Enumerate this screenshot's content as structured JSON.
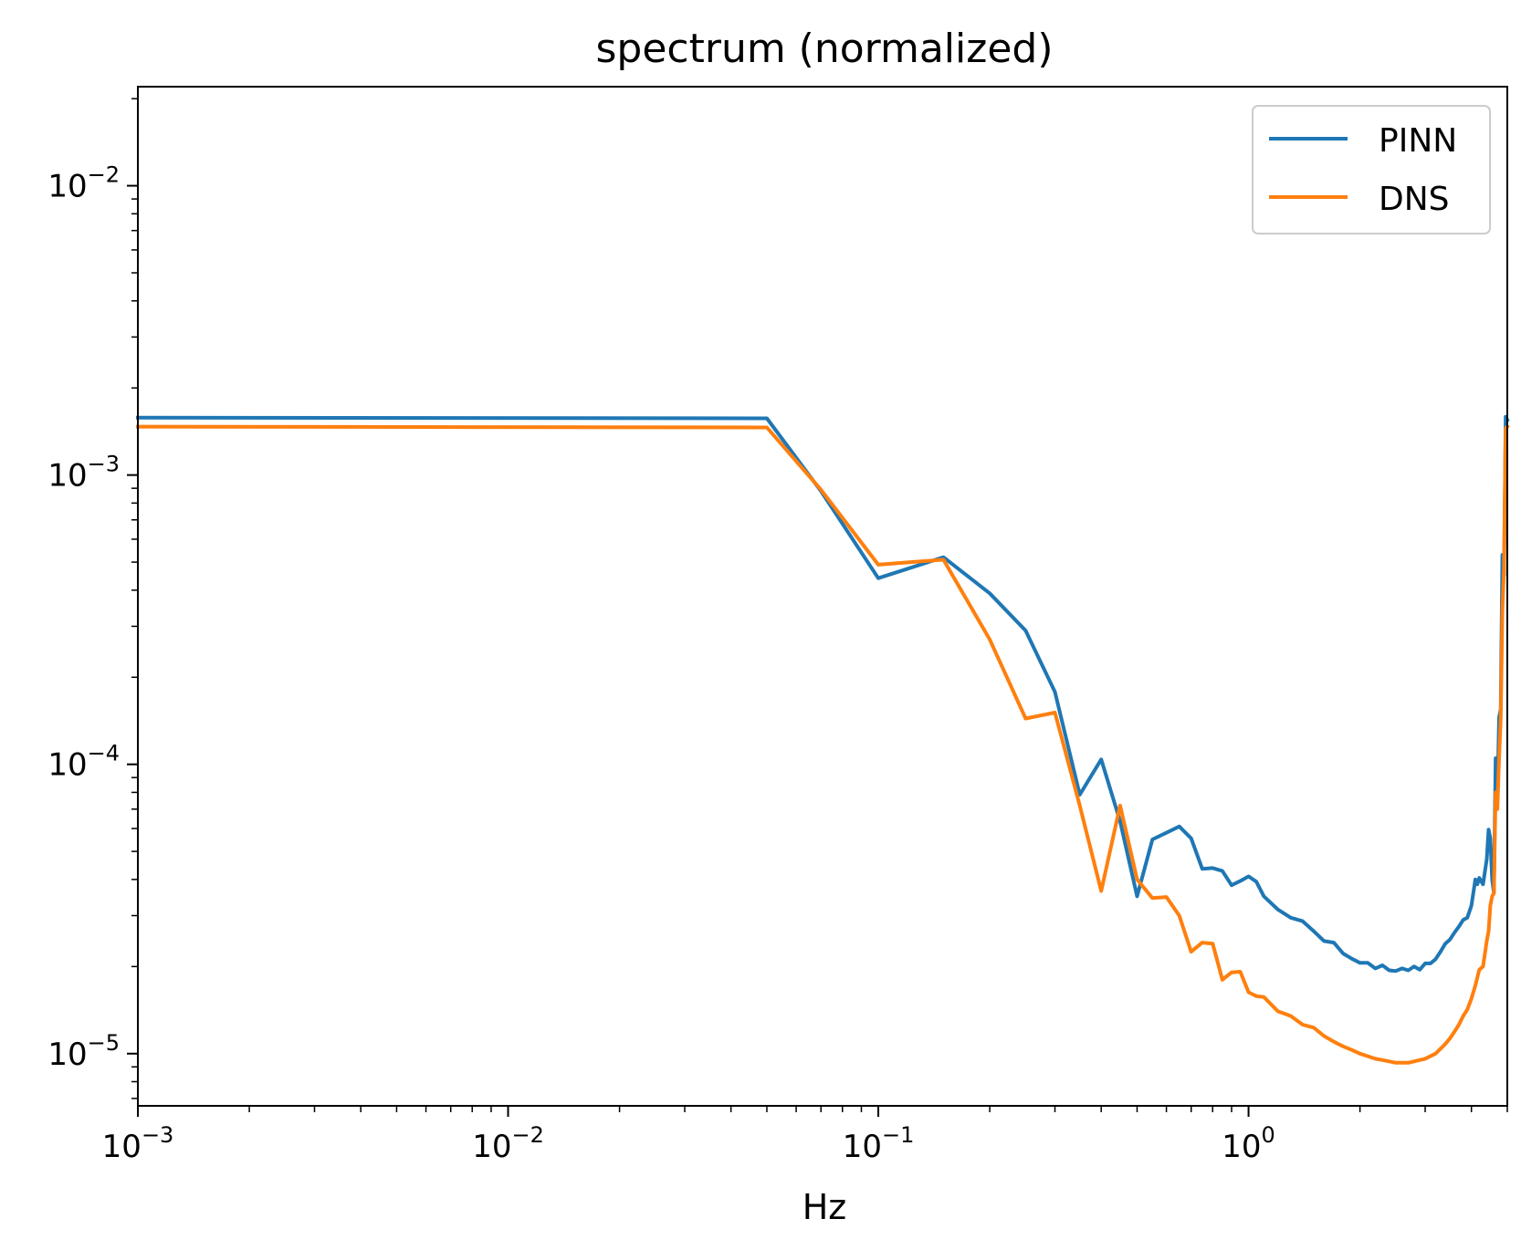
{
  "chart_data": {
    "type": "line",
    "title": "spectrum (normalized)",
    "xlabel": "Hz",
    "ylabel": "",
    "xscale": "log",
    "yscale": "log",
    "xlim": [
      0.001,
      5.0
    ],
    "ylim": [
      6.6e-06,
      0.022
    ],
    "grid": false,
    "legend_position": "upper right",
    "x_ticks": [
      {
        "value": 0.001,
        "label": "10",
        "exp": "−3"
      },
      {
        "value": 0.01,
        "label": "10",
        "exp": "−2"
      },
      {
        "value": 0.1,
        "label": "10",
        "exp": "−1"
      },
      {
        "value": 1,
        "label": "10",
        "exp": "0"
      }
    ],
    "y_ticks": [
      {
        "value": 1e-05,
        "label": "10",
        "exp": "−5"
      },
      {
        "value": 0.0001,
        "label": "10",
        "exp": "−4"
      },
      {
        "value": 0.001,
        "label": "10",
        "exp": "−3"
      },
      {
        "value": 0.01,
        "label": "10",
        "exp": "−2"
      }
    ],
    "series": [
      {
        "name": "PINN",
        "color": "#1f77b4",
        "points": [
          [
            0.001,
            0.00158
          ],
          [
            0.05,
            0.00157
          ],
          [
            0.07,
            0.00088
          ],
          [
            0.1,
            0.00044
          ],
          [
            0.15,
            0.00052
          ],
          [
            0.2,
            0.00039
          ],
          [
            0.25,
            0.00029
          ],
          [
            0.3,
            0.000178
          ],
          [
            0.35,
            7.85e-05
          ],
          [
            0.4,
            0.000104
          ],
          [
            0.45,
            6.35e-05
          ],
          [
            0.5,
            3.5e-05
          ],
          [
            0.55,
            5.5e-05
          ],
          [
            0.6,
            5.8e-05
          ],
          [
            0.65,
            6.1e-05
          ],
          [
            0.7,
            5.55e-05
          ],
          [
            0.75,
            4.35e-05
          ],
          [
            0.8,
            4.38e-05
          ],
          [
            0.85,
            4.28e-05
          ],
          [
            0.9,
            3.82e-05
          ],
          [
            0.95,
            3.95e-05
          ],
          [
            1.0,
            4.1e-05
          ],
          [
            1.05,
            3.93e-05
          ],
          [
            1.1,
            3.5e-05
          ],
          [
            1.2,
            3.15e-05
          ],
          [
            1.3,
            2.95e-05
          ],
          [
            1.4,
            2.87e-05
          ],
          [
            1.5,
            2.65e-05
          ],
          [
            1.6,
            2.45e-05
          ],
          [
            1.7,
            2.42e-05
          ],
          [
            1.8,
            2.22e-05
          ],
          [
            1.9,
            2.13e-05
          ],
          [
            2.0,
            2.06e-05
          ],
          [
            2.1,
            2.06e-05
          ],
          [
            2.2,
            1.97e-05
          ],
          [
            2.3,
            2.02e-05
          ],
          [
            2.4,
            1.94e-05
          ],
          [
            2.5,
            1.93e-05
          ],
          [
            2.6,
            1.97e-05
          ],
          [
            2.7,
            1.94e-05
          ],
          [
            2.8,
            2e-05
          ],
          [
            2.9,
            1.95e-05
          ],
          [
            3.0,
            2.05e-05
          ],
          [
            3.1,
            2.05e-05
          ],
          [
            3.2,
            2.12e-05
          ],
          [
            3.3,
            2.25e-05
          ],
          [
            3.4,
            2.4e-05
          ],
          [
            3.5,
            2.48e-05
          ],
          [
            3.6,
            2.62e-05
          ],
          [
            3.7,
            2.75e-05
          ],
          [
            3.8,
            2.9e-05
          ],
          [
            3.9,
            2.95e-05
          ],
          [
            4.0,
            3.25e-05
          ],
          [
            4.1,
            4e-05
          ],
          [
            4.15,
            3.85e-05
          ],
          [
            4.2,
            4.05e-05
          ],
          [
            4.3,
            3.85e-05
          ],
          [
            4.4,
            4.7e-05
          ],
          [
            4.45,
            5.95e-05
          ],
          [
            4.5,
            5.55e-05
          ],
          [
            4.55,
            4e-05
          ],
          [
            4.6,
            3.6e-05
          ],
          [
            4.65,
            0.000105
          ],
          [
            4.7,
            7.5e-05
          ],
          [
            4.75,
            0.000145
          ],
          [
            4.8,
            0.000155
          ],
          [
            4.85,
            0.00053
          ],
          [
            4.9,
            0.00045
          ],
          [
            4.95,
            0.00159
          ],
          [
            5.0,
            0.00155
          ]
        ]
      },
      {
        "name": "DNS",
        "color": "#ff7f0e",
        "points": [
          [
            0.001,
            0.00147
          ],
          [
            0.05,
            0.00146
          ],
          [
            0.07,
            0.00089
          ],
          [
            0.1,
            0.00049
          ],
          [
            0.15,
            0.00051
          ],
          [
            0.2,
            0.00027
          ],
          [
            0.25,
            0.000144
          ],
          [
            0.3,
            0.000151
          ],
          [
            0.35,
            7.2e-05
          ],
          [
            0.4,
            3.65e-05
          ],
          [
            0.45,
            7.2e-05
          ],
          [
            0.5,
            4e-05
          ],
          [
            0.55,
            3.45e-05
          ],
          [
            0.6,
            3.48e-05
          ],
          [
            0.65,
            3e-05
          ],
          [
            0.7,
            2.25e-05
          ],
          [
            0.75,
            2.42e-05
          ],
          [
            0.8,
            2.4e-05
          ],
          [
            0.85,
            1.8e-05
          ],
          [
            0.9,
            1.91e-05
          ],
          [
            0.95,
            1.92e-05
          ],
          [
            1.0,
            1.63e-05
          ],
          [
            1.05,
            1.58e-05
          ],
          [
            1.1,
            1.57e-05
          ],
          [
            1.2,
            1.4e-05
          ],
          [
            1.3,
            1.35e-05
          ],
          [
            1.4,
            1.26e-05
          ],
          [
            1.5,
            1.23e-05
          ],
          [
            1.6,
            1.15e-05
          ],
          [
            1.7,
            1.1e-05
          ],
          [
            1.8,
            1.06e-05
          ],
          [
            1.9,
            1.03e-05
          ],
          [
            2.0,
            1e-05
          ],
          [
            2.1,
            9.8e-06
          ],
          [
            2.2,
            9.6e-06
          ],
          [
            2.3,
            9.5e-06
          ],
          [
            2.4,
            9.4e-06
          ],
          [
            2.5,
            9.3e-06
          ],
          [
            2.6,
            9.3e-06
          ],
          [
            2.7,
            9.3e-06
          ],
          [
            2.8,
            9.4e-06
          ],
          [
            2.9,
            9.5e-06
          ],
          [
            3.0,
            9.6e-06
          ],
          [
            3.1,
            9.8e-06
          ],
          [
            3.2,
            1e-05
          ],
          [
            3.3,
            1.04e-05
          ],
          [
            3.4,
            1.08e-05
          ],
          [
            3.5,
            1.13e-05
          ],
          [
            3.6,
            1.19e-05
          ],
          [
            3.7,
            1.26e-05
          ],
          [
            3.8,
            1.35e-05
          ],
          [
            3.9,
            1.42e-05
          ],
          [
            4.0,
            1.55e-05
          ],
          [
            4.1,
            1.72e-05
          ],
          [
            4.2,
            1.95e-05
          ],
          [
            4.3,
            2e-05
          ],
          [
            4.35,
            2.22e-05
          ],
          [
            4.4,
            2.45e-05
          ],
          [
            4.45,
            2.65e-05
          ],
          [
            4.5,
            3.25e-05
          ],
          [
            4.55,
            3.5e-05
          ],
          [
            4.6,
            3.58e-05
          ],
          [
            4.65,
            8e-05
          ],
          [
            4.7,
            7e-05
          ],
          [
            4.75,
            0.000105
          ],
          [
            4.8,
            0.000145
          ],
          [
            4.85,
            0.00034
          ],
          [
            4.9,
            0.00048
          ],
          [
            4.95,
            0.00145
          ],
          [
            5.0,
            0.00147
          ]
        ]
      }
    ]
  }
}
